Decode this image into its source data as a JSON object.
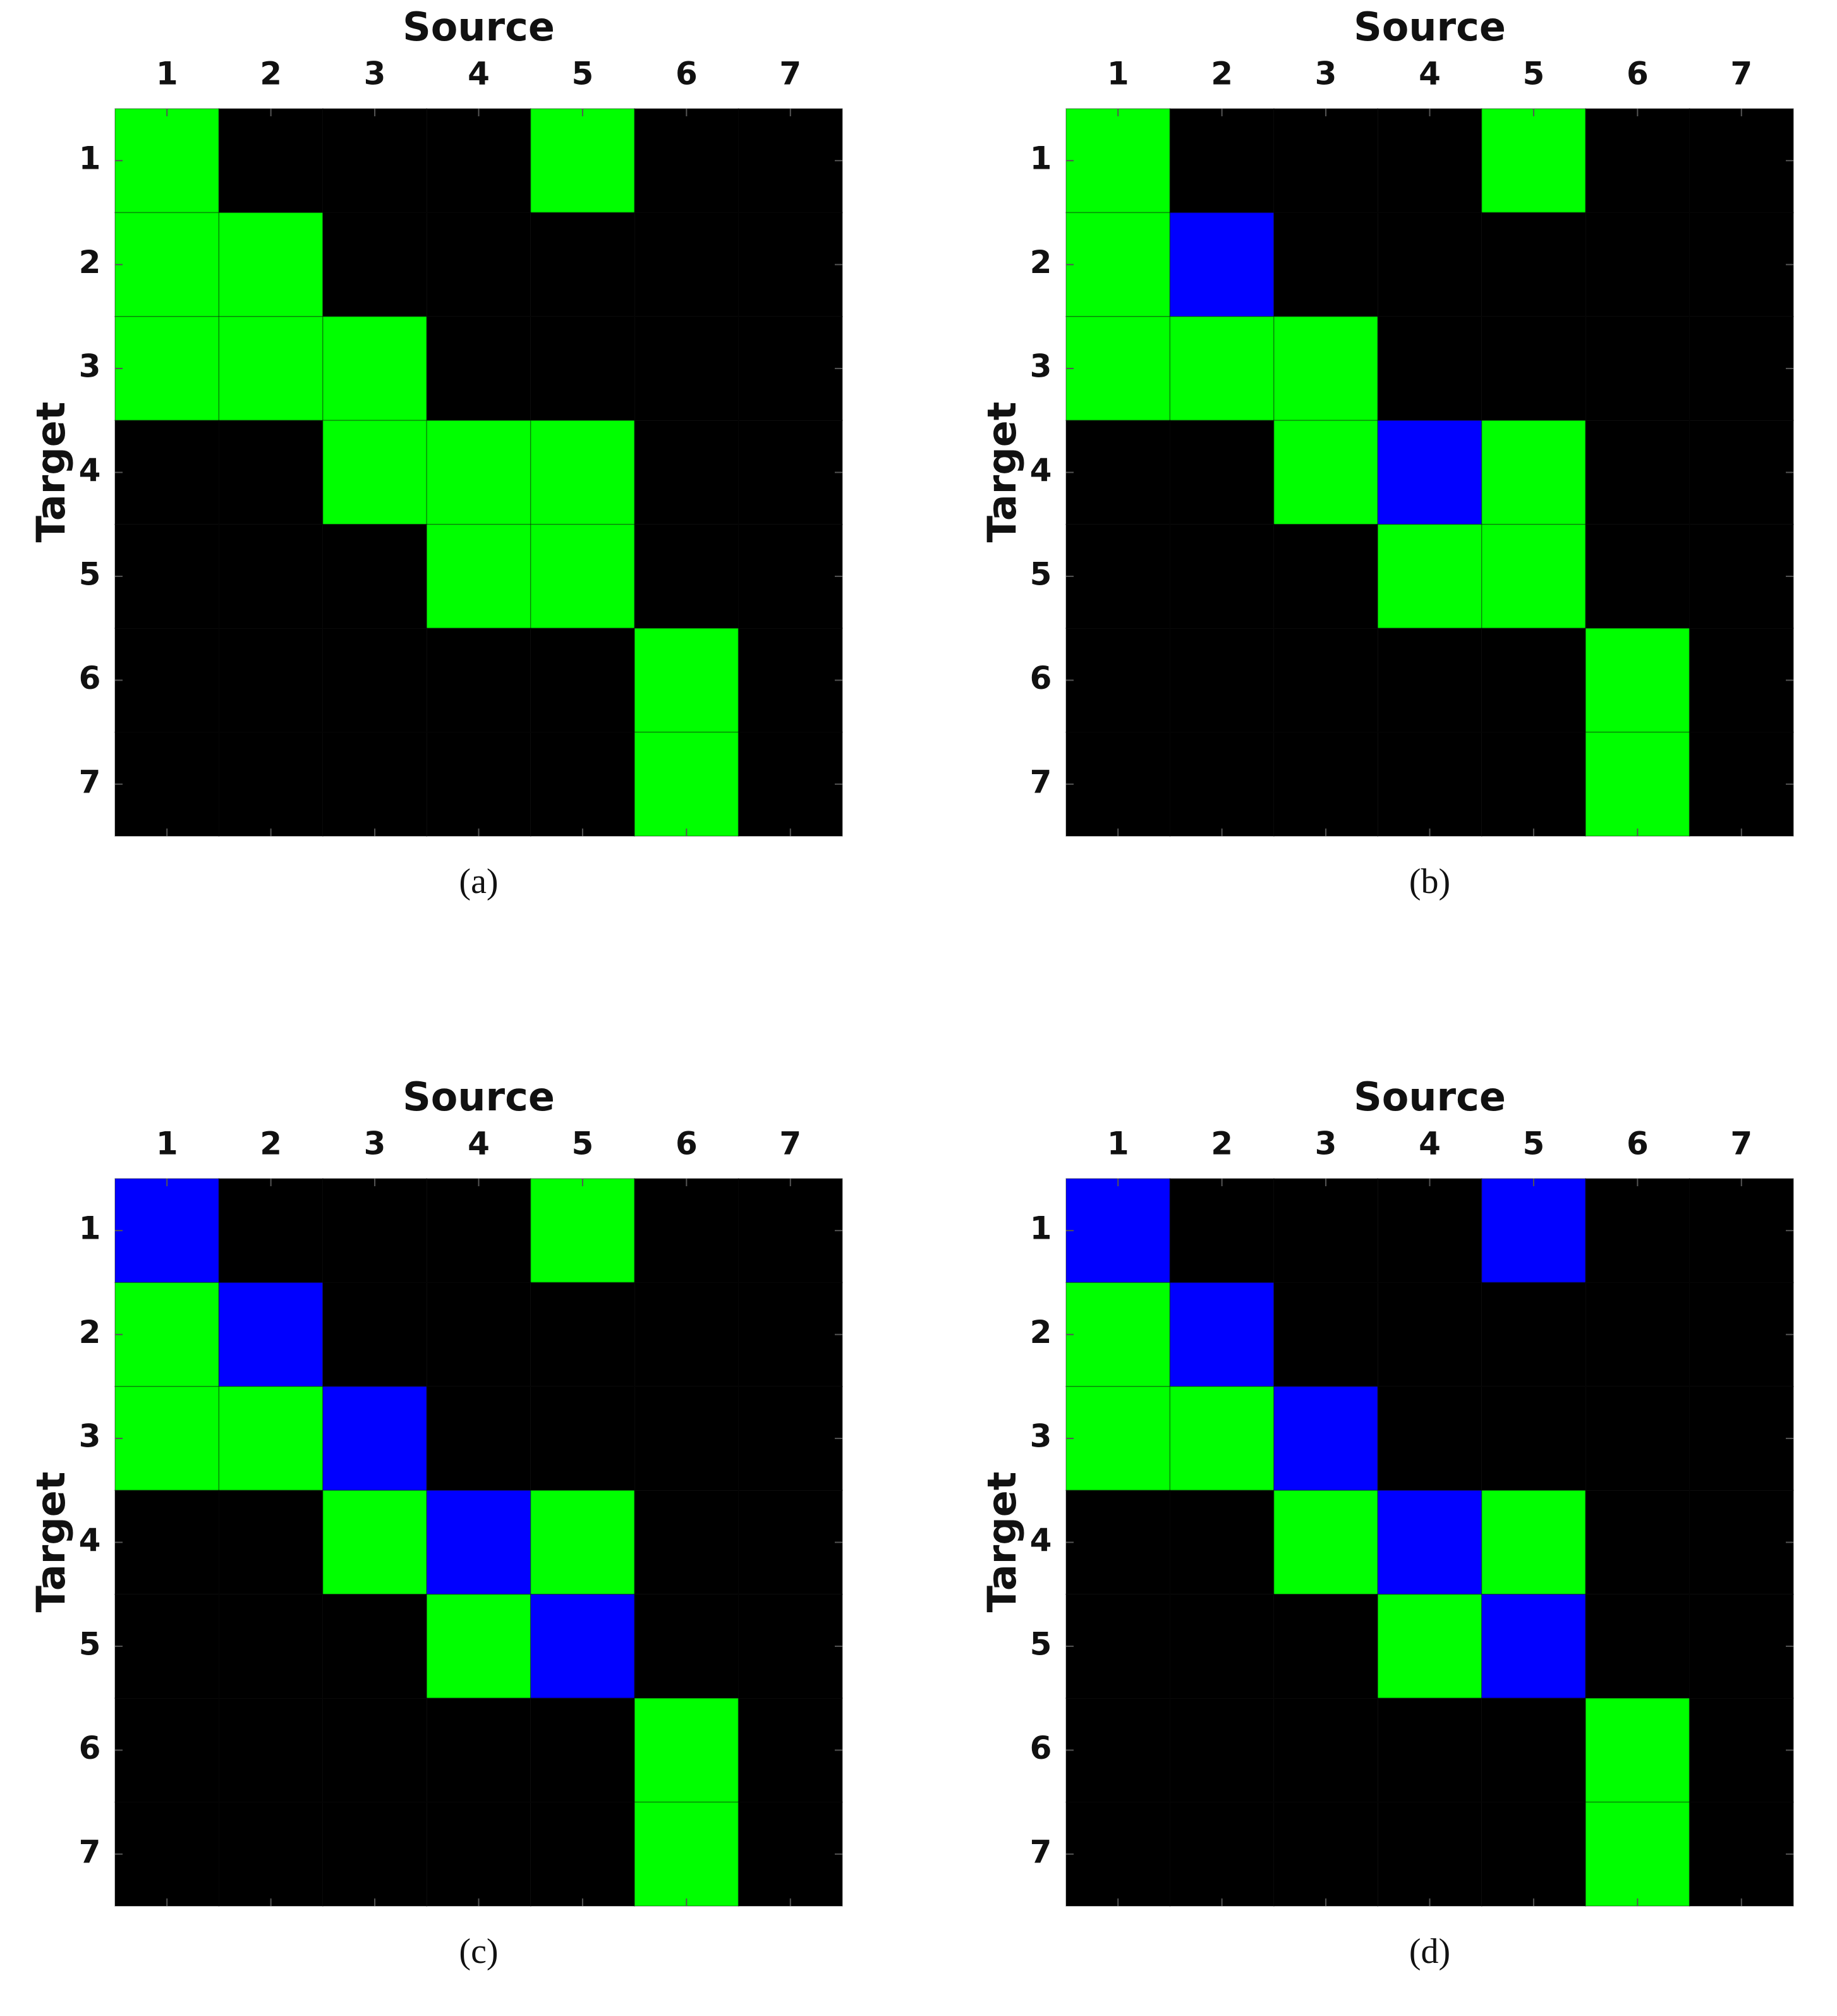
{
  "chart_data": [
    {
      "type": "heatmap",
      "caption": "(a)",
      "xlabel": "Source",
      "ylabel": "Target",
      "x": [
        1,
        2,
        3,
        4,
        5,
        6,
        7
      ],
      "y": [
        1,
        2,
        3,
        4,
        5,
        6,
        7
      ],
      "xlim": [
        0.5,
        7.5
      ],
      "ylim": [
        7.5,
        0.5
      ],
      "colors": [
        "#000000",
        "#00ff00",
        "#0000ff"
      ],
      "values": [
        [
          1,
          0,
          0,
          0,
          1,
          0,
          0
        ],
        [
          1,
          1,
          0,
          0,
          0,
          0,
          0
        ],
        [
          1,
          1,
          1,
          0,
          0,
          0,
          0
        ],
        [
          0,
          0,
          1,
          1,
          1,
          0,
          0
        ],
        [
          0,
          0,
          0,
          1,
          1,
          0,
          0
        ],
        [
          0,
          0,
          0,
          0,
          0,
          1,
          0
        ],
        [
          0,
          0,
          0,
          0,
          0,
          1,
          0
        ]
      ]
    },
    {
      "type": "heatmap",
      "caption": "(b)",
      "xlabel": "Source",
      "ylabel": "Target",
      "x": [
        1,
        2,
        3,
        4,
        5,
        6,
        7
      ],
      "y": [
        1,
        2,
        3,
        4,
        5,
        6,
        7
      ],
      "xlim": [
        0.5,
        7.5
      ],
      "ylim": [
        7.5,
        0.5
      ],
      "colors": [
        "#000000",
        "#00ff00",
        "#0000ff"
      ],
      "values": [
        [
          1,
          0,
          0,
          0,
          1,
          0,
          0
        ],
        [
          1,
          2,
          0,
          0,
          0,
          0,
          0
        ],
        [
          1,
          1,
          1,
          0,
          0,
          0,
          0
        ],
        [
          0,
          0,
          1,
          2,
          1,
          0,
          0
        ],
        [
          0,
          0,
          0,
          1,
          1,
          0,
          0
        ],
        [
          0,
          0,
          0,
          0,
          0,
          1,
          0
        ],
        [
          0,
          0,
          0,
          0,
          0,
          1,
          0
        ]
      ]
    },
    {
      "type": "heatmap",
      "caption": "(c)",
      "xlabel": "Source",
      "ylabel": "Target",
      "x": [
        1,
        2,
        3,
        4,
        5,
        6,
        7
      ],
      "y": [
        1,
        2,
        3,
        4,
        5,
        6,
        7
      ],
      "xlim": [
        0.5,
        7.5
      ],
      "ylim": [
        7.5,
        0.5
      ],
      "colors": [
        "#000000",
        "#00ff00",
        "#0000ff"
      ],
      "values": [
        [
          2,
          0,
          0,
          0,
          1,
          0,
          0
        ],
        [
          1,
          2,
          0,
          0,
          0,
          0,
          0
        ],
        [
          1,
          1,
          2,
          0,
          0,
          0,
          0
        ],
        [
          0,
          0,
          1,
          2,
          1,
          0,
          0
        ],
        [
          0,
          0,
          0,
          1,
          2,
          0,
          0
        ],
        [
          0,
          0,
          0,
          0,
          0,
          1,
          0
        ],
        [
          0,
          0,
          0,
          0,
          0,
          1,
          0
        ]
      ]
    },
    {
      "type": "heatmap",
      "caption": "(d)",
      "xlabel": "Source",
      "ylabel": "Target",
      "x": [
        1,
        2,
        3,
        4,
        5,
        6,
        7
      ],
      "y": [
        1,
        2,
        3,
        4,
        5,
        6,
        7
      ],
      "xlim": [
        0.5,
        7.5
      ],
      "ylim": [
        7.5,
        0.5
      ],
      "colors": [
        "#000000",
        "#00ff00",
        "#0000ff"
      ],
      "values": [
        [
          2,
          0,
          0,
          0,
          2,
          0,
          0
        ],
        [
          1,
          2,
          0,
          0,
          0,
          0,
          0
        ],
        [
          1,
          1,
          2,
          0,
          0,
          0,
          0
        ],
        [
          0,
          0,
          1,
          2,
          1,
          0,
          0
        ],
        [
          0,
          0,
          0,
          1,
          2,
          0,
          0
        ],
        [
          0,
          0,
          0,
          0,
          0,
          1,
          0
        ],
        [
          0,
          0,
          0,
          0,
          0,
          1,
          0
        ]
      ]
    }
  ]
}
